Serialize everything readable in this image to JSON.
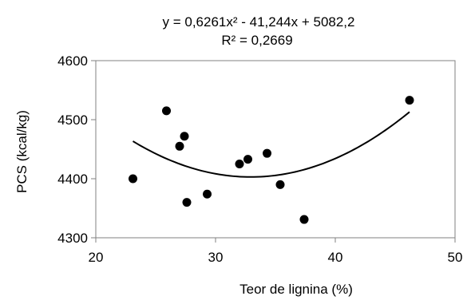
{
  "chart_data": {
    "type": "scatter",
    "title": "",
    "xlabel": "Teor de lignina (%)",
    "ylabel": "PCS (kcal/kg)",
    "xlim": [
      20,
      50
    ],
    "ylim": [
      4300,
      4600
    ],
    "xticks": [
      20,
      30,
      40,
      50
    ],
    "yticks": [
      4300,
      4400,
      4500,
      4600
    ],
    "xtick_labels": [
      "20",
      "30",
      "40",
      "50"
    ],
    "ytick_labels": [
      "4300",
      "4400",
      "4500",
      "4600"
    ],
    "grid": false,
    "legend": "none",
    "series": [
      {
        "x": [
          23.1,
          25.9,
          27.0,
          27.4,
          27.6,
          29.3,
          32.0,
          32.7,
          34.3,
          35.4,
          37.4,
          46.2
        ],
        "y": [
          4400,
          4515,
          4455,
          4472,
          4360,
          4374,
          4425,
          4433,
          4443,
          4390,
          4331,
          4533
        ]
      }
    ],
    "trendline": {
      "type": "polynomial",
      "coefficients": [
        0.6261,
        -41.244,
        5082.2
      ],
      "x_range": [
        23.1,
        46.2
      ],
      "equation": "y = 0,6261x² - 41,244x + 5082,2",
      "r_squared": "R² = 0,2669"
    },
    "colors": {
      "points": "#000000",
      "line": "#000000",
      "frame": "#808080",
      "axis": "#808080"
    }
  }
}
